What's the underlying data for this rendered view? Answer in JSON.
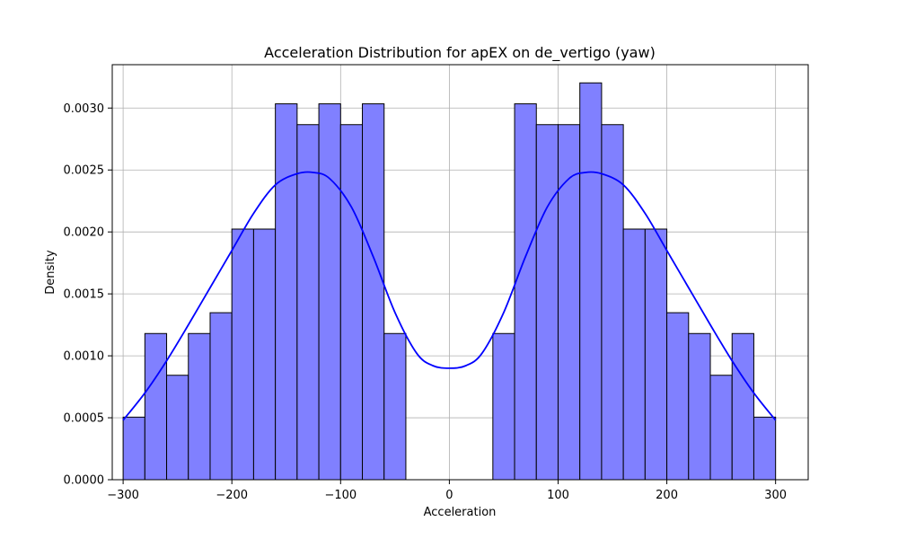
{
  "chart_data": {
    "type": "bar",
    "title": "Acceleration Distribution for apEX on de_vertigo (yaw)",
    "xlabel": "Acceleration",
    "ylabel": "Density",
    "xlim": [
      -310,
      330
    ],
    "ylim": [
      0,
      0.00335
    ],
    "grid": true,
    "xticks": [
      -300,
      -200,
      -100,
      0,
      100,
      200,
      300
    ],
    "xtick_labels": [
      "−300",
      "−200",
      "−100",
      "0",
      "100",
      "200",
      "300"
    ],
    "yticks": [
      0,
      0.0005,
      0.001,
      0.0015,
      0.002,
      0.0025,
      0.003
    ],
    "ytick_labels": [
      "0.0000",
      "0.0005",
      "0.0010",
      "0.0015",
      "0.0020",
      "0.0025",
      "0.0030"
    ],
    "bar_color": "#8080ff",
    "bar_edge_color": "#000000",
    "kde_color": "#0000ff",
    "bins": [
      {
        "x0": -300,
        "x1": -280,
        "density": 0.000505
      },
      {
        "x0": -280,
        "x1": -260,
        "density": 0.00118
      },
      {
        "x0": -260,
        "x1": -240,
        "density": 0.000843
      },
      {
        "x0": -240,
        "x1": -220,
        "density": 0.00118
      },
      {
        "x0": -220,
        "x1": -200,
        "density": 0.001348
      },
      {
        "x0": -200,
        "x1": -180,
        "density": 0.002023
      },
      {
        "x0": -180,
        "x1": -160,
        "density": 0.002023
      },
      {
        "x0": -160,
        "x1": -140,
        "density": 0.003034
      },
      {
        "x0": -140,
        "x1": -120,
        "density": 0.002866
      },
      {
        "x0": -120,
        "x1": -100,
        "density": 0.003034
      },
      {
        "x0": -100,
        "x1": -80,
        "density": 0.002866
      },
      {
        "x0": -80,
        "x1": -60,
        "density": 0.003034
      },
      {
        "x0": -60,
        "x1": -40,
        "density": 0.00118
      },
      {
        "x0": -40,
        "x1": -20,
        "density": 0
      },
      {
        "x0": -20,
        "x1": 0,
        "density": 0
      },
      {
        "x0": 0,
        "x1": 20,
        "density": 0
      },
      {
        "x0": 20,
        "x1": 40,
        "density": 0
      },
      {
        "x0": 40,
        "x1": 60,
        "density": 0.00118
      },
      {
        "x0": 60,
        "x1": 80,
        "density": 0.003034
      },
      {
        "x0": 80,
        "x1": 100,
        "density": 0.002866
      },
      {
        "x0": 100,
        "x1": 120,
        "density": 0.002866
      },
      {
        "x0": 120,
        "x1": 140,
        "density": 0.003203
      },
      {
        "x0": 140,
        "x1": 160,
        "density": 0.002866
      },
      {
        "x0": 160,
        "x1": 180,
        "density": 0.002023
      },
      {
        "x0": 180,
        "x1": 200,
        "density": 0.002023
      },
      {
        "x0": 200,
        "x1": 220,
        "density": 0.001348
      },
      {
        "x0": 220,
        "x1": 240,
        "density": 0.00118
      },
      {
        "x0": 240,
        "x1": 260,
        "density": 0.000843
      },
      {
        "x0": 260,
        "x1": 280,
        "density": 0.00118
      },
      {
        "x0": 280,
        "x1": 300,
        "density": 0.000505
      }
    ],
    "kde": {
      "x": [
        -300,
        -280,
        -260,
        -240,
        -220,
        -200,
        -180,
        -160,
        -140,
        -125,
        -110,
        -90,
        -70,
        -50,
        -30,
        -15,
        0,
        15,
        30,
        50,
        70,
        90,
        110,
        125,
        140,
        160,
        180,
        200,
        220,
        240,
        260,
        280,
        300
      ],
      "y": [
        0.00048,
        0.0007,
        0.00096,
        0.00125,
        0.00155,
        0.00185,
        0.00215,
        0.00238,
        0.00247,
        0.00248,
        0.00243,
        0.0022,
        0.0018,
        0.00135,
        0.00102,
        0.00092,
        0.0009,
        0.00092,
        0.00102,
        0.00135,
        0.0018,
        0.0022,
        0.00243,
        0.00248,
        0.00247,
        0.00238,
        0.00215,
        0.00185,
        0.00155,
        0.00125,
        0.00096,
        0.0007,
        0.00048
      ]
    }
  }
}
